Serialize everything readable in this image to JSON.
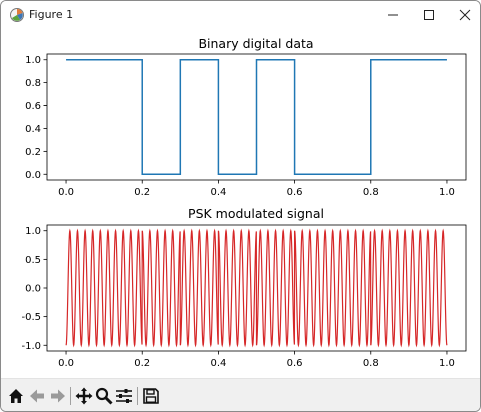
{
  "window": {
    "title": "Figure 1"
  },
  "toolbar": {
    "tools": [
      "home-icon",
      "back-arrow-icon",
      "forward-arrow-icon",
      "pan-icon",
      "zoom-icon",
      "configure-subplots-icon",
      "save-icon"
    ]
  },
  "colors": {
    "digital": "#1f77b4",
    "psk": "#d62728"
  },
  "chart_data": [
    {
      "type": "line",
      "title": "Binary digital data",
      "xlabel": "",
      "ylabel": "",
      "xlim": [
        -0.05,
        1.05
      ],
      "ylim": [
        -0.05,
        1.05
      ],
      "x_ticks": [
        "0.0",
        "0.2",
        "0.4",
        "0.6",
        "0.8",
        "1.0"
      ],
      "y_ticks": [
        "0.0",
        "0.2",
        "0.4",
        "0.6",
        "0.8",
        "1.0"
      ],
      "grid": false,
      "series": [
        {
          "style": "step",
          "bits": [
            1,
            1,
            0,
            1,
            0,
            1,
            0,
            0,
            1,
            1
          ],
          "x": [
            0.0,
            0.1,
            0.2,
            0.3,
            0.4,
            0.5,
            0.6,
            0.7,
            0.8,
            0.9,
            1.0
          ],
          "y": [
            1,
            1,
            0,
            1,
            0,
            1,
            0,
            0,
            1,
            1,
            1
          ]
        }
      ]
    },
    {
      "type": "line",
      "title": "PSK modulated signal",
      "xlabel": "",
      "ylabel": "",
      "xlim": [
        -0.05,
        1.05
      ],
      "ylim": [
        -1.1,
        1.1
      ],
      "x_ticks": [
        "0.0",
        "0.2",
        "0.4",
        "0.6",
        "0.8",
        "1.0"
      ],
      "y_ticks": [
        "-1.0",
        "-0.5",
        "0.0",
        "0.5",
        "1.0"
      ],
      "grid": false,
      "series": [
        {
          "formula": "cos(2*pi*f*t + pi*(1-bit))",
          "carrier_cycles": 50,
          "amplitude": 1.0,
          "bits": [
            1,
            1,
            0,
            1,
            0,
            1,
            0,
            0,
            1,
            1
          ]
        }
      ]
    }
  ]
}
